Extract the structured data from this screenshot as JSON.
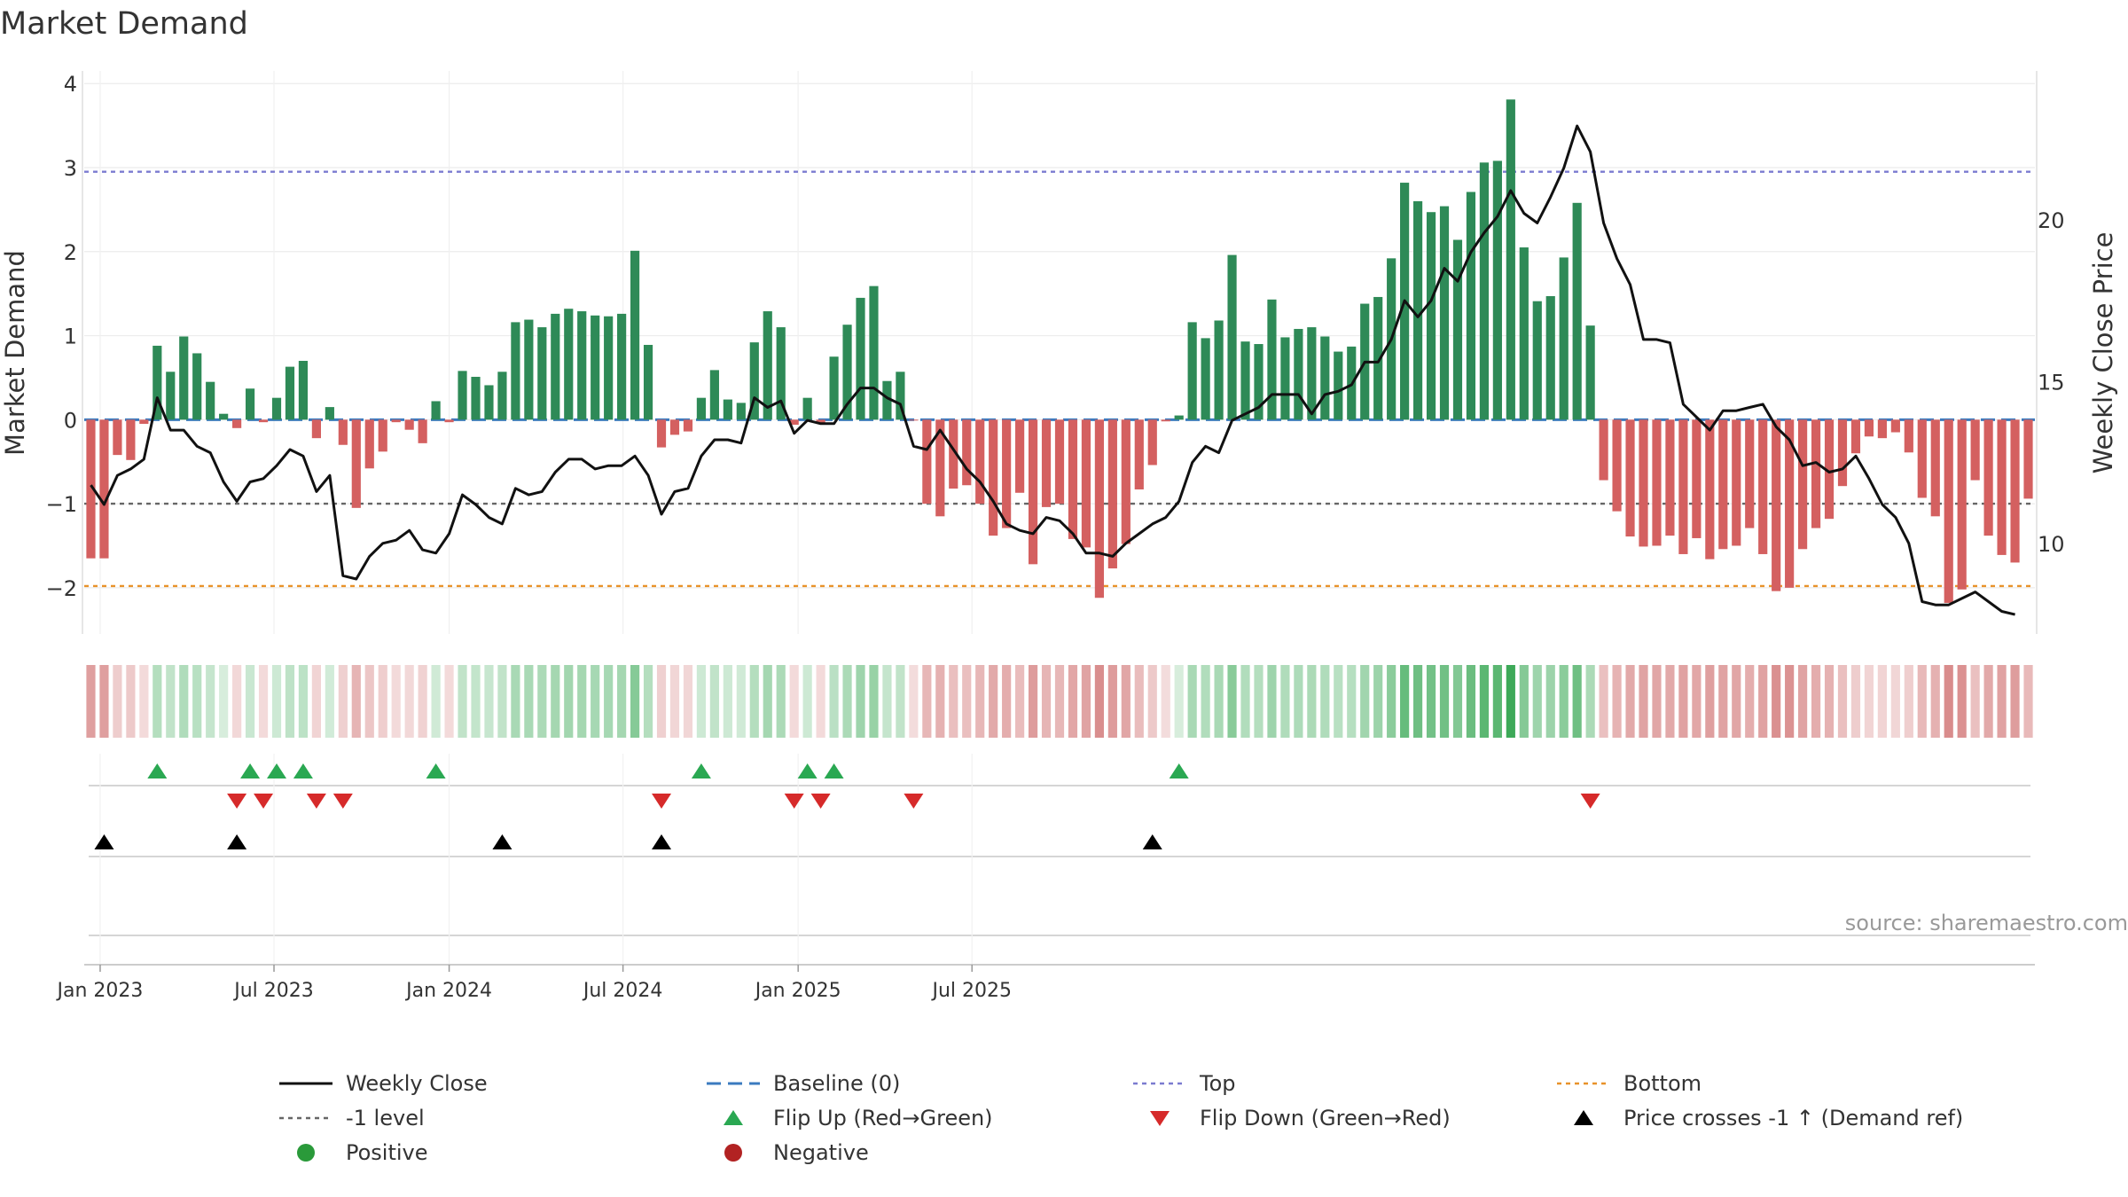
{
  "chart_data": {
    "type": "bar",
    "title": "Market Demand",
    "ylabel": "Market Demand",
    "y2label": "Weekly Close Price",
    "ylim": [
      -2.55,
      4.15
    ],
    "y2lim": [
      7.2,
      24.6
    ],
    "yticks": [
      -2,
      -1,
      0,
      1,
      2,
      3,
      4
    ],
    "y2ticks": [
      10,
      15,
      20
    ],
    "x_ticks": [
      {
        "index": 0.7,
        "label": "Jan 2023"
      },
      {
        "index": 13.8,
        "label": "Jul 2023"
      },
      {
        "index": 27.0,
        "label": "Jan 2024"
      },
      {
        "index": 40.1,
        "label": "Jul 2024"
      },
      {
        "index": 53.3,
        "label": "Jan 2025"
      },
      {
        "index": 66.4,
        "label": "Jul 2025"
      }
    ],
    "demand": [
      -1.65,
      -1.65,
      -0.42,
      -0.48,
      -0.05,
      0.88,
      0.57,
      0.99,
      0.79,
      0.45,
      0.07,
      -0.1,
      0.37,
      -0.03,
      0.26,
      0.63,
      0.7,
      -0.22,
      0.15,
      -0.3,
      -1.05,
      -0.58,
      -0.38,
      -0.03,
      -0.12,
      -0.28,
      0.22,
      -0.03,
      0.58,
      0.51,
      0.41,
      0.57,
      1.16,
      1.19,
      1.1,
      1.26,
      1.32,
      1.29,
      1.24,
      1.23,
      1.26,
      2.01,
      0.89,
      -0.33,
      -0.18,
      -0.14,
      0.26,
      0.59,
      0.24,
      0.2,
      0.92,
      1.29,
      1.1,
      -0.06,
      0.26,
      -0.05,
      0.75,
      1.13,
      1.45,
      1.59,
      0.46,
      0.57,
      -0.01,
      -1.0,
      -1.15,
      -0.82,
      -0.78,
      -1.0,
      -1.38,
      -1.29,
      -0.87,
      -1.72,
      -1.04,
      -1.0,
      -1.42,
      -1.52,
      -2.12,
      -1.77,
      -1.48,
      -0.83,
      -0.54,
      -0.02,
      0.05,
      1.16,
      0.97,
      1.18,
      1.96,
      0.93,
      0.9,
      1.43,
      0.98,
      1.08,
      1.1,
      0.99,
      0.81,
      0.87,
      1.38,
      1.46,
      1.92,
      2.82,
      2.6,
      2.47,
      2.54,
      2.14,
      2.71,
      3.06,
      3.08,
      3.81,
      2.05,
      1.41,
      1.47,
      1.93,
      2.58,
      1.12,
      -0.72,
      -1.09,
      -1.39,
      -1.51,
      -1.5,
      -1.38,
      -1.6,
      -1.41,
      -1.66,
      -1.54,
      -1.5,
      -1.29,
      -1.6,
      -2.04,
      -2.0,
      -1.54,
      -1.29,
      -1.18,
      -0.79,
      -0.4,
      -0.2,
      -0.22,
      -0.15,
      -0.39,
      -0.93,
      -1.15,
      -2.18,
      -2.02,
      -0.72,
      -1.38,
      -1.61,
      -1.7,
      -0.94
    ],
    "price": [
      11.8,
      11.2,
      12.1,
      12.3,
      12.6,
      14.5,
      13.5,
      13.5,
      13.0,
      12.8,
      11.9,
      11.3,
      11.9,
      12.0,
      12.4,
      12.9,
      12.7,
      11.6,
      12.1,
      9.0,
      8.9,
      9.6,
      10.0,
      10.1,
      10.4,
      9.8,
      9.7,
      10.3,
      11.5,
      11.2,
      10.8,
      10.6,
      11.7,
      11.5,
      11.6,
      12.2,
      12.6,
      12.6,
      12.3,
      12.4,
      12.4,
      12.7,
      12.1,
      10.9,
      11.6,
      11.7,
      12.7,
      13.2,
      13.2,
      13.1,
      14.5,
      14.2,
      14.4,
      13.4,
      13.8,
      13.7,
      13.7,
      14.3,
      14.8,
      14.8,
      14.5,
      14.3,
      13.0,
      12.9,
      13.5,
      12.9,
      12.3,
      11.9,
      11.3,
      10.6,
      10.4,
      10.3,
      10.8,
      10.7,
      10.3,
      9.7,
      9.7,
      9.6,
      10.0,
      10.3,
      10.6,
      10.8,
      11.3,
      12.5,
      13.0,
      12.8,
      13.8,
      14.0,
      14.2,
      14.6,
      14.6,
      14.6,
      14.0,
      14.6,
      14.7,
      14.9,
      15.6,
      15.6,
      16.3,
      17.5,
      17.0,
      17.5,
      18.5,
      18.1,
      19.0,
      19.6,
      20.1,
      20.9,
      20.2,
      19.9,
      20.7,
      21.6,
      22.9,
      22.1,
      19.9,
      18.8,
      18.0,
      16.3,
      16.3,
      16.2,
      14.3,
      13.9,
      13.5,
      14.1,
      14.1,
      14.2,
      14.3,
      13.6,
      13.2,
      12.4,
      12.5,
      12.2,
      12.3,
      12.7,
      12.0,
      11.2,
      10.8,
      10.0,
      8.2,
      8.1,
      8.1,
      8.3,
      8.5,
      8.2,
      7.9,
      7.8
    ],
    "flip_up": [
      5,
      12,
      14,
      16,
      26,
      46,
      54,
      56,
      82
    ],
    "flip_down": [
      11,
      13,
      17,
      19,
      43,
      53,
      55,
      62,
      113
    ],
    "price_cross": [
      1,
      11,
      31,
      43,
      80
    ],
    "h_lines": [
      {
        "name": "Top",
        "value": 2.95,
        "color": "#7b7bd0"
      },
      {
        "name": "-1 level",
        "value": -1.0,
        "color": "#666666"
      },
      {
        "name": "Bottom",
        "value": -1.98,
        "color": "#e8922a"
      },
      {
        "name": "Baseline (0)",
        "value": 0.0,
        "color": "#3b7bbf"
      }
    ],
    "colors": {
      "positive": "#2e8a57",
      "negative": "#d46060",
      "price_line": "#111111",
      "flip_up": "#2aa852",
      "flip_down": "#d62a2a",
      "price_cross": "#000000",
      "positive_dot": "#2a9a3a",
      "negative_dot": "#b22222"
    },
    "source": "source: sharemaestro.com",
    "legend": [
      {
        "label": "Weekly Close",
        "kind": "line",
        "color": "#111111"
      },
      {
        "label": "Baseline (0)",
        "kind": "dash",
        "color": "#3b7bbf"
      },
      {
        "label": "Top",
        "kind": "dot",
        "color": "#7b7bd0"
      },
      {
        "label": "Bottom",
        "kind": "dot",
        "color": "#e8922a"
      },
      {
        "label": "-1 level",
        "kind": "dot",
        "color": "#666666"
      },
      {
        "label": "Flip Up (Red→Green)",
        "kind": "tri-up",
        "color": "#2aa852"
      },
      {
        "label": "Flip Down (Green→Red)",
        "kind": "tri-down",
        "color": "#d62a2a"
      },
      {
        "label": "Price crosses -1 ↑ (Demand ref)",
        "kind": "tri-up",
        "color": "#000000"
      },
      {
        "label": "Positive",
        "kind": "circle",
        "color": "#2a9a3a"
      },
      {
        "label": "Negative",
        "kind": "circle",
        "color": "#b22222"
      }
    ]
  }
}
